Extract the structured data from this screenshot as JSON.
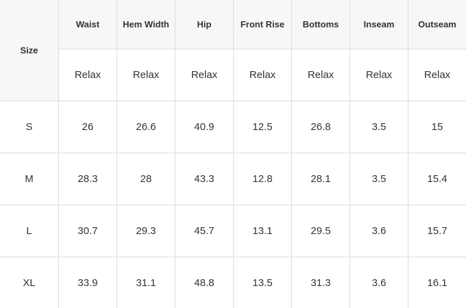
{
  "table": {
    "header": [
      "Size",
      "Waist",
      "Hem Width",
      "Hip",
      "Front Rise",
      "Bottoms",
      "Inseam",
      "Outseam"
    ],
    "subheader": [
      "Relax",
      "Relax",
      "Relax",
      "Relax",
      "Relax",
      "Relax",
      "Relax"
    ],
    "rows": [
      [
        "S",
        26,
        26.6,
        40.9,
        12.5,
        26.8,
        3.5,
        15
      ],
      [
        "M",
        28.3,
        28,
        43.3,
        12.8,
        28.1,
        3.5,
        15.4
      ],
      [
        "L",
        30.7,
        29.3,
        45.7,
        13.1,
        29.5,
        3.6,
        15.7
      ],
      [
        "XL",
        33.9,
        31.1,
        48.8,
        13.5,
        31.3,
        3.6,
        16.1
      ]
    ]
  }
}
